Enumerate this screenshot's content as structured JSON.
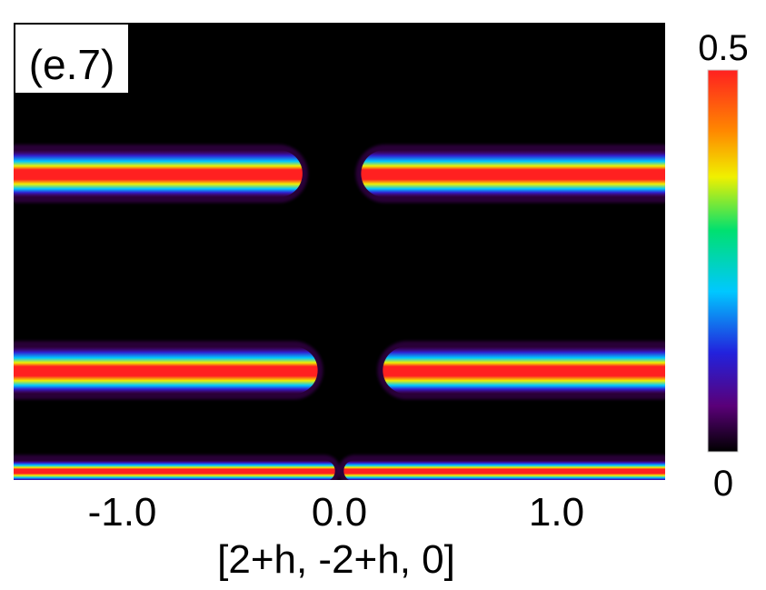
{
  "chart_data": {
    "type": "heatmap",
    "panel_label": "(e.7)",
    "xlabel": "[2+h, -2+h, 0]",
    "ylabel": "",
    "xlim": [
      -1.5,
      1.5
    ],
    "ylim": [
      0,
      1
    ],
    "x_ticks": [
      {
        "value": -1.0,
        "label": "-1.0"
      },
      {
        "value": 0.0,
        "label": "0.0"
      },
      {
        "value": 1.0,
        "label": "1.0"
      }
    ],
    "colorbar": {
      "min": 0,
      "max": 0.5,
      "min_label": "0",
      "max_label": "0.5",
      "colormap": [
        "#000000",
        "#5a0078",
        "#2222dd",
        "#00c8ff",
        "#00e070",
        "#f0f000",
        "#ff8800",
        "#ff2020"
      ]
    },
    "bands": [
      {
        "y": 0.67,
        "width": 0.045,
        "x_gap": [
          -0.17,
          0.1
        ],
        "peak": 0.5
      },
      {
        "y": 0.24,
        "width": 0.045,
        "x_gap": [
          -0.1,
          0.2
        ],
        "peak": 0.5
      },
      {
        "y": 0.02,
        "width": 0.02,
        "x_gap": [
          -0.02,
          0.02
        ],
        "peak": 0.5
      }
    ],
    "background": "#000000"
  }
}
